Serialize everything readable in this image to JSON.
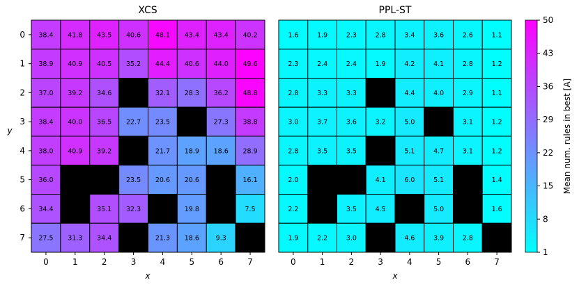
{
  "chart_data": [
    {
      "type": "heatmap",
      "title": "XCS",
      "xlabel": "x",
      "ylabel": "y",
      "x": [
        0,
        1,
        2,
        3,
        4,
        5,
        6,
        7
      ],
      "y": [
        0,
        1,
        2,
        3,
        4,
        5,
        6,
        7
      ],
      "values": [
        [
          38.4,
          41.8,
          43.5,
          40.6,
          48.1,
          43.4,
          43.4,
          40.2
        ],
        [
          38.9,
          40.9,
          40.5,
          35.2,
          44.4,
          40.6,
          44.0,
          49.6
        ],
        [
          37.0,
          39.2,
          34.6,
          null,
          32.1,
          28.3,
          36.2,
          48.8
        ],
        [
          38.4,
          40.0,
          36.5,
          22.7,
          23.5,
          null,
          27.3,
          38.8
        ],
        [
          38.0,
          40.9,
          39.2,
          null,
          21.7,
          18.9,
          18.6,
          28.9
        ],
        [
          36.0,
          null,
          null,
          23.5,
          20.6,
          20.6,
          null,
          16.1
        ],
        [
          34.4,
          null,
          35.1,
          32.3,
          null,
          19.8,
          null,
          7.5
        ],
        [
          27.5,
          31.3,
          34.4,
          null,
          21.3,
          18.6,
          9.3,
          null
        ]
      ],
      "missing_color": "#000000"
    },
    {
      "type": "heatmap",
      "title": "PPL-ST",
      "xlabel": "x",
      "ylabel": "",
      "x": [
        0,
        1,
        2,
        3,
        4,
        5,
        6,
        7
      ],
      "y": [
        0,
        1,
        2,
        3,
        4,
        5,
        6,
        7
      ],
      "values": [
        [
          1.6,
          1.9,
          2.3,
          2.8,
          3.4,
          3.6,
          2.6,
          1.1
        ],
        [
          2.3,
          2.4,
          2.4,
          1.9,
          4.2,
          4.1,
          2.8,
          1.2
        ],
        [
          2.8,
          3.3,
          3.3,
          null,
          4.4,
          4.0,
          2.9,
          1.1
        ],
        [
          3.0,
          3.7,
          3.6,
          3.2,
          5.0,
          null,
          3.1,
          1.2
        ],
        [
          2.8,
          3.5,
          3.5,
          null,
          5.1,
          4.7,
          3.1,
          1.2
        ],
        [
          2.0,
          null,
          null,
          4.1,
          6.0,
          5.1,
          null,
          1.4
        ],
        [
          2.2,
          null,
          3.5,
          4.5,
          null,
          5.0,
          null,
          1.6
        ],
        [
          1.9,
          2.2,
          3.0,
          null,
          4.6,
          3.9,
          2.8,
          null
        ]
      ],
      "missing_color": "#000000"
    }
  ],
  "colorbar": {
    "label": "Mean num. rules in best [A]",
    "range": [
      1,
      50
    ],
    "ticks": [
      1,
      8,
      15,
      22,
      29,
      36,
      43,
      50
    ],
    "colormap": "cool",
    "color_low": "#00ffff",
    "color_high": "#ff00ff"
  }
}
